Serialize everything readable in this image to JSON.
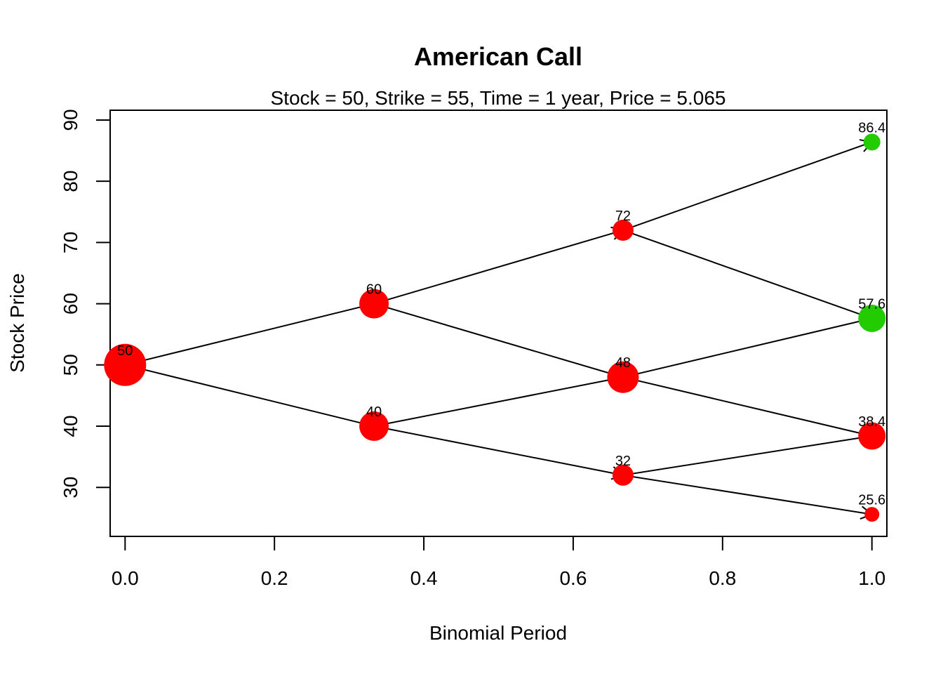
{
  "chart_data": {
    "type": "scatter",
    "title": "American Call",
    "subtitle": "Stock = 50, Strike = 55, Time = 1 year, Price = 5.065",
    "xlabel": "Binomial Period",
    "ylabel": "Stock Price",
    "xlim": [
      -0.02,
      1.02
    ],
    "ylim": [
      22,
      91.6
    ],
    "x_ticks": [
      0.0,
      0.2,
      0.4,
      0.6,
      0.8,
      1.0
    ],
    "x_tick_labels": [
      "0.0",
      "0.2",
      "0.4",
      "0.6",
      "0.8",
      "1.0"
    ],
    "y_ticks": [
      30,
      40,
      50,
      60,
      70,
      80,
      90
    ],
    "y_tick_labels": [
      "30",
      "40",
      "50",
      "60",
      "70",
      "80",
      "90"
    ],
    "colors": {
      "red": "#ff0000",
      "green": "#22cc00",
      "line": "#000000"
    },
    "nodes": [
      {
        "id": "n0",
        "x": 0.0,
        "y": 50,
        "label": "50",
        "color": "red",
        "size": 1.0
      },
      {
        "id": "n1u",
        "x": 0.3333,
        "y": 60,
        "label": "60",
        "color": "red",
        "size": 0.7
      },
      {
        "id": "n1d",
        "x": 0.3333,
        "y": 40,
        "label": "40",
        "color": "red",
        "size": 0.7
      },
      {
        "id": "n2uu",
        "x": 0.6667,
        "y": 72,
        "label": "72",
        "color": "red",
        "size": 0.5
      },
      {
        "id": "n2ud",
        "x": 0.6667,
        "y": 48,
        "label": "48",
        "color": "red",
        "size": 0.75
      },
      {
        "id": "n2dd",
        "x": 0.6667,
        "y": 32,
        "label": "32",
        "color": "red",
        "size": 0.5
      },
      {
        "id": "n3uuu",
        "x": 1.0,
        "y": 86.4,
        "label": "86.4",
        "color": "green",
        "size": 0.4
      },
      {
        "id": "n3uud",
        "x": 1.0,
        "y": 57.6,
        "label": "57.6",
        "color": "green",
        "size": 0.65
      },
      {
        "id": "n3udd",
        "x": 1.0,
        "y": 38.4,
        "label": "38.4",
        "color": "red",
        "size": 0.65
      },
      {
        "id": "n3ddd",
        "x": 1.0,
        "y": 25.6,
        "label": "25.6",
        "color": "red",
        "size": 0.35
      }
    ],
    "edges": [
      {
        "from": "n0",
        "to": "n1u"
      },
      {
        "from": "n0",
        "to": "n1d"
      },
      {
        "from": "n1u",
        "to": "n2uu"
      },
      {
        "from": "n1u",
        "to": "n2ud"
      },
      {
        "from": "n1d",
        "to": "n2ud"
      },
      {
        "from": "n1d",
        "to": "n2dd"
      },
      {
        "from": "n2uu",
        "to": "n3uuu"
      },
      {
        "from": "n2uu",
        "to": "n3uud"
      },
      {
        "from": "n2ud",
        "to": "n3uud"
      },
      {
        "from": "n2ud",
        "to": "n3udd"
      },
      {
        "from": "n2dd",
        "to": "n3udd"
      },
      {
        "from": "n2dd",
        "to": "n3ddd"
      }
    ]
  }
}
